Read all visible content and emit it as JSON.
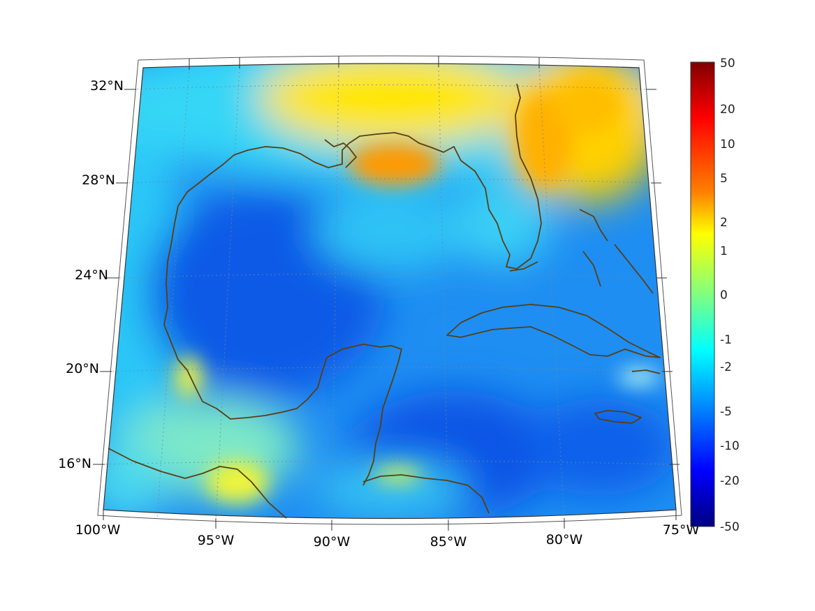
{
  "map": {
    "projection": "conic",
    "extent": {
      "lon": [
        -100,
        -75
      ],
      "lat": [
        14,
        32
      ]
    },
    "lon_labels": [
      "100°W",
      "95°W",
      "90°W",
      "85°W",
      "80°W",
      "75°W"
    ],
    "lat_labels": [
      "32°N",
      "28°N",
      "24°N",
      "20°N",
      "16°N"
    ],
    "grid": "dotted",
    "coastline_color": "#5a3e12",
    "field_colormap": "jet"
  },
  "colorbar": {
    "labels": [
      "50",
      "20",
      "10",
      "5",
      "2",
      "1",
      "0",
      "-1",
      "-2",
      "-5",
      "-10",
      "-20",
      "-50"
    ],
    "colors": [
      "#800000",
      "#ff0000",
      "#ff8000",
      "#ffff00",
      "#80ff80",
      "#00ffff",
      "#0080ff",
      "#0000ff",
      "#000080"
    ]
  }
}
